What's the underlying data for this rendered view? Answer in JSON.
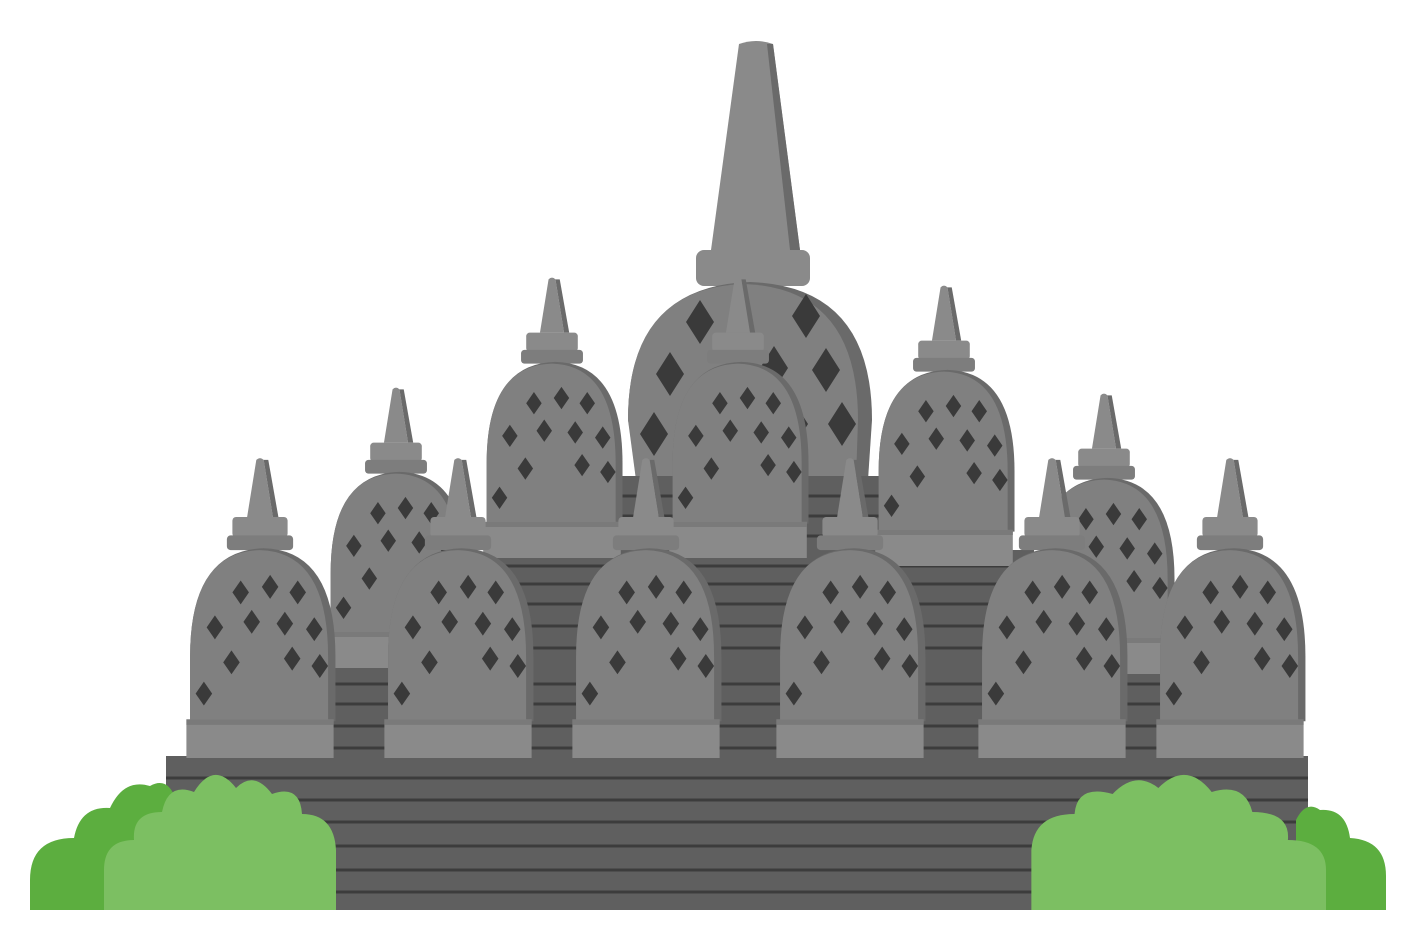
{
  "colors": {
    "background": "#ffffff",
    "stone_light": "#8a8a8a",
    "stone_mid": "#787878",
    "stone_shadow": "#6a6a6a",
    "base_dark": "#5f5f5f",
    "groove": "#3c3c3c",
    "lattice": "#3a3a3a",
    "bush_dark": "#5cae3f",
    "bush_light": "#7cbf62"
  },
  "icons": [
    "temple-illustration",
    "stupa-icon",
    "bush-icon"
  ]
}
